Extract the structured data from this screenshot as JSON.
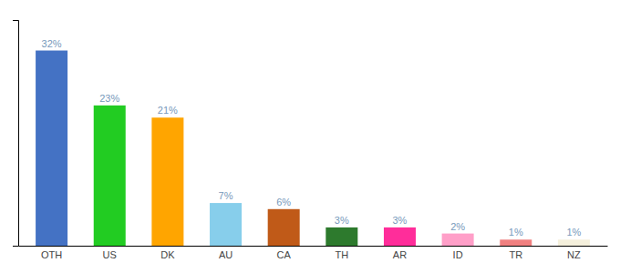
{
  "chart_data": {
    "type": "bar",
    "categories": [
      "OTH",
      "US",
      "DK",
      "AU",
      "CA",
      "TH",
      "AR",
      "ID",
      "TR",
      "NZ"
    ],
    "values": [
      32,
      23,
      21,
      7,
      6,
      3,
      3,
      2,
      1,
      1
    ],
    "value_labels": [
      "32%",
      "23%",
      "21%",
      "7%",
      "6%",
      "3%",
      "3%",
      "2%",
      "1%",
      "1%"
    ],
    "colors": [
      "#4472C4",
      "#22CC22",
      "#FFA500",
      "#87CEEB",
      "#C05A18",
      "#2D7A2D",
      "#FF2D9A",
      "#FF9FC8",
      "#F08080",
      "#F5F0DC"
    ],
    "ylim": [
      0,
      37
    ],
    "data_labels": true,
    "tick_labels": "x",
    "grid": false
  }
}
